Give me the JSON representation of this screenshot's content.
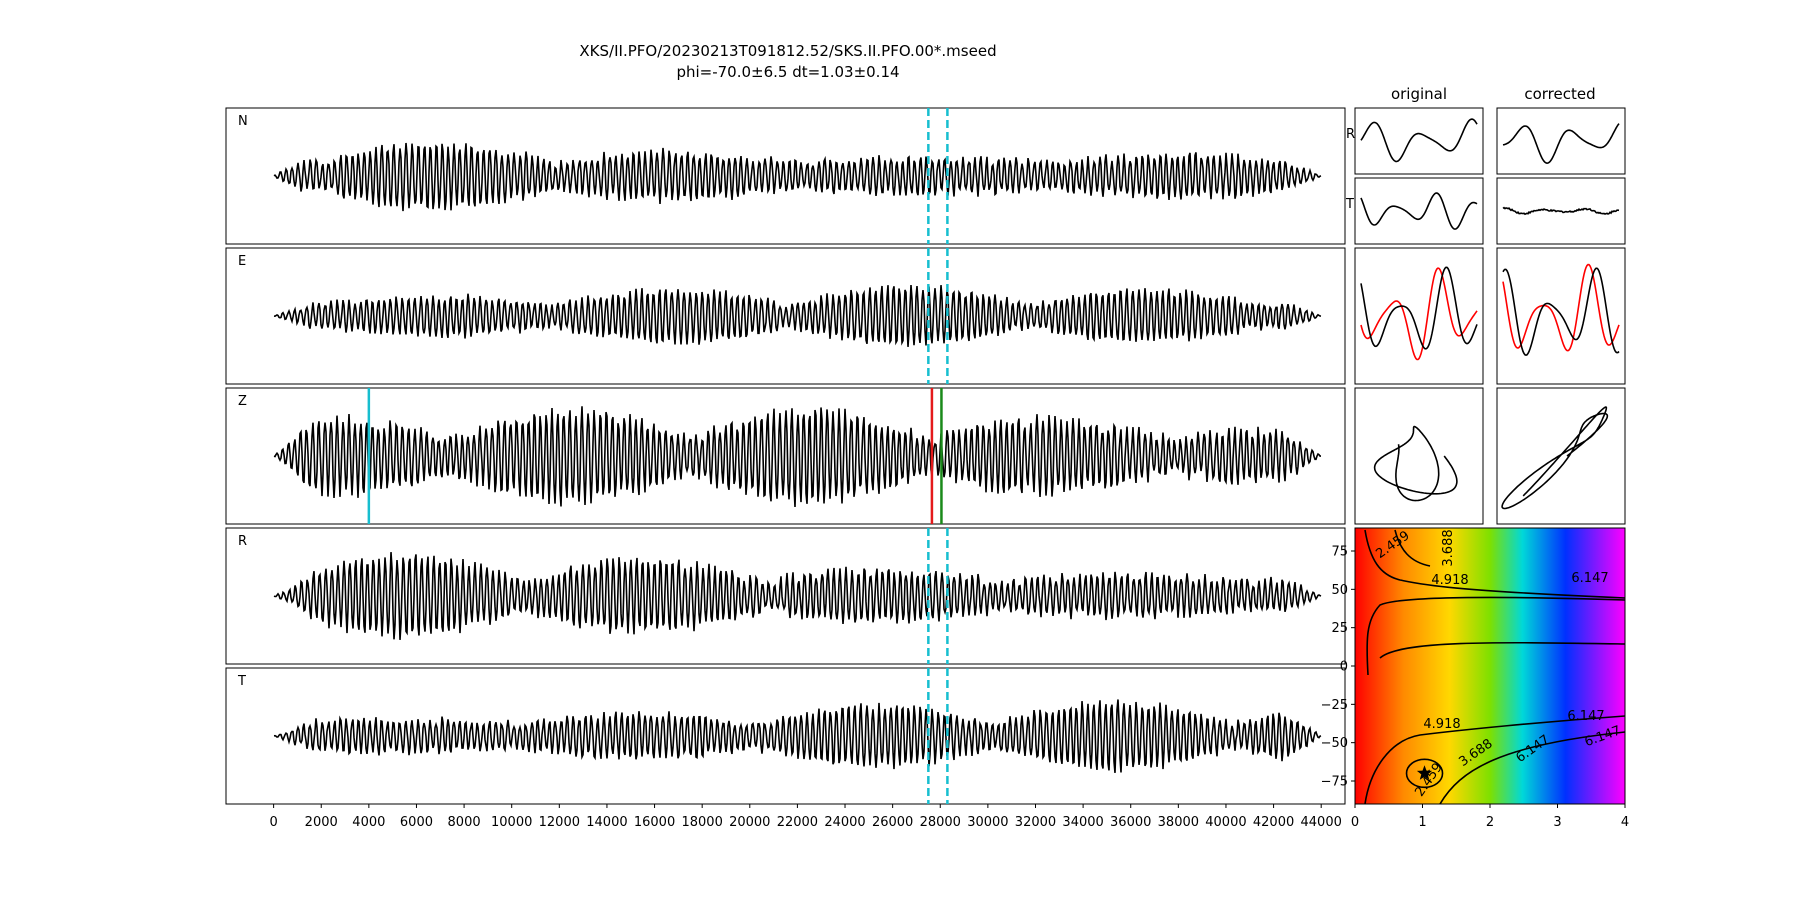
{
  "title": {
    "line1": "XKS/II.PFO/20230213T091812.52/SKS.II.PFO.00*.mseed",
    "line2": "phi=-70.0±6.5 dt=1.03±0.14"
  },
  "column_headers": {
    "original": "original",
    "corrected": "corrected"
  },
  "traces": [
    {
      "label": "N",
      "amp": 0.27,
      "seed": 11,
      "has_window": true
    },
    {
      "label": "E",
      "amp": 0.22,
      "seed": 23,
      "has_window": true
    },
    {
      "label": "Z",
      "amp": 0.35,
      "seed": 37,
      "has_window": false
    },
    {
      "label": "R",
      "amp": 0.3,
      "seed": 41,
      "has_window": true
    },
    {
      "label": "T",
      "amp": 0.25,
      "seed": 53,
      "has_window": true
    }
  ],
  "small_panel_labels": {
    "r": "R",
    "t": "T"
  },
  "colors": {
    "trace": "#000000",
    "window": "#17becf",
    "pick_cyan": "#17becf",
    "pick_red": "#e41a1c",
    "pick_green": "#1a8a1a",
    "overlay_red": "#ff0000"
  },
  "chart_data": [
    {
      "type": "line",
      "description_units": "time (samples)",
      "xlim": [
        -2000,
        45000
      ],
      "x_ticks": [
        0,
        2000,
        4000,
        6000,
        8000,
        10000,
        12000,
        14000,
        16000,
        18000,
        20000,
        22000,
        24000,
        26000,
        28000,
        30000,
        32000,
        34000,
        36000,
        38000,
        40000,
        42000,
        44000
      ],
      "x_tick_labels": [
        "0",
        "2000",
        "4000",
        "6000",
        "8000",
        "10000",
        "12000",
        "14000",
        "16000",
        "18000",
        "20000",
        "22000",
        "24000",
        "26000",
        "28000",
        "30000",
        "32000",
        "34000",
        "36000",
        "38000",
        "40000",
        "42000",
        "44000"
      ],
      "signal_range": [
        0,
        44000
      ],
      "window": [
        27500,
        28300
      ],
      "picks": [
        {
          "name": "cyan",
          "x": 4000
        },
        {
          "name": "red",
          "x": 27650
        },
        {
          "name": "green",
          "x": 28050
        }
      ]
    },
    {
      "type": "heatmap",
      "xlim": [
        0,
        4
      ],
      "ylim": [
        -90,
        90
      ],
      "x_ticks": [
        0,
        1,
        2,
        3,
        4
      ],
      "x_tick_labels": [
        "0",
        "1",
        "2",
        "3",
        "4"
      ],
      "y_ticks": [
        75,
        50,
        25,
        0,
        -25,
        -50,
        -75
      ],
      "y_tick_labels": [
        "75",
        "50",
        "25",
        "0",
        "−25",
        "−50",
        "−75"
      ],
      "contour_levels": [
        "2.459",
        "3.688",
        "4.918",
        "6.147"
      ],
      "best": {
        "dt": 1.03,
        "phi": -70.0
      }
    }
  ]
}
